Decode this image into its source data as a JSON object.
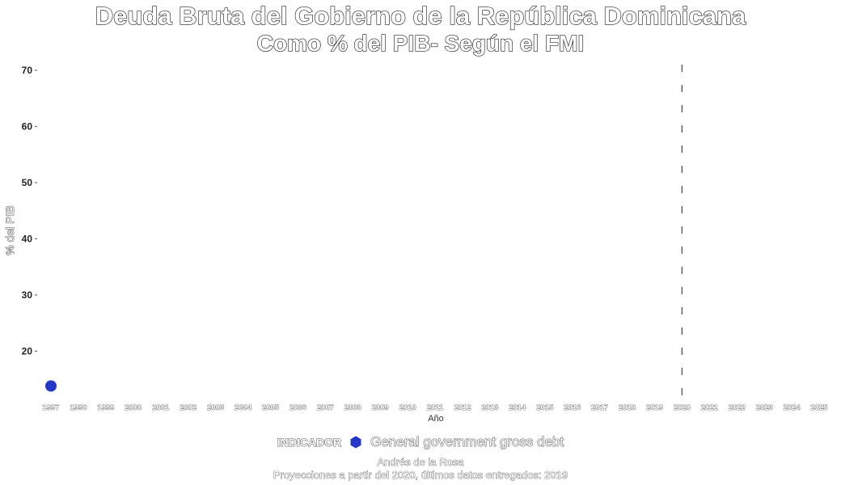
{
  "chart_data": {
    "type": "scatter",
    "title": "Deuda Bruta del Gobierno de la República Dominicana",
    "subtitle": "Como % del PIB- Según el FMI",
    "xlabel": "Año",
    "ylabel": "% del PIB",
    "x_ticks": [
      "1997",
      "1998",
      "1999",
      "2000",
      "2001",
      "2002",
      "2003",
      "2004",
      "2005",
      "2006",
      "2007",
      "2008",
      "2009",
      "2010",
      "2011",
      "2012",
      "2013",
      "2014",
      "2015",
      "2016",
      "2017",
      "2018",
      "2019",
      "2020",
      "2021",
      "2022",
      "2023",
      "2024",
      "2025"
    ],
    "y_ticks": [
      20,
      30,
      40,
      50,
      60,
      70
    ],
    "xlim": [
      1997,
      2025
    ],
    "ylim": [
      12,
      71
    ],
    "grid": false,
    "legend_position": "bottom",
    "legend_title": "INDICADOR",
    "series": [
      {
        "name": "General government gross debt",
        "color": "#2438c4",
        "points": [
          {
            "x": 1997,
            "y": 13.8
          }
        ]
      }
    ],
    "projection_line": {
      "x": 2020
    },
    "caption": [
      "Andrés de la Rosa",
      "Proyecciones a partir del 2020, últimos datos entregados: 2019"
    ]
  }
}
